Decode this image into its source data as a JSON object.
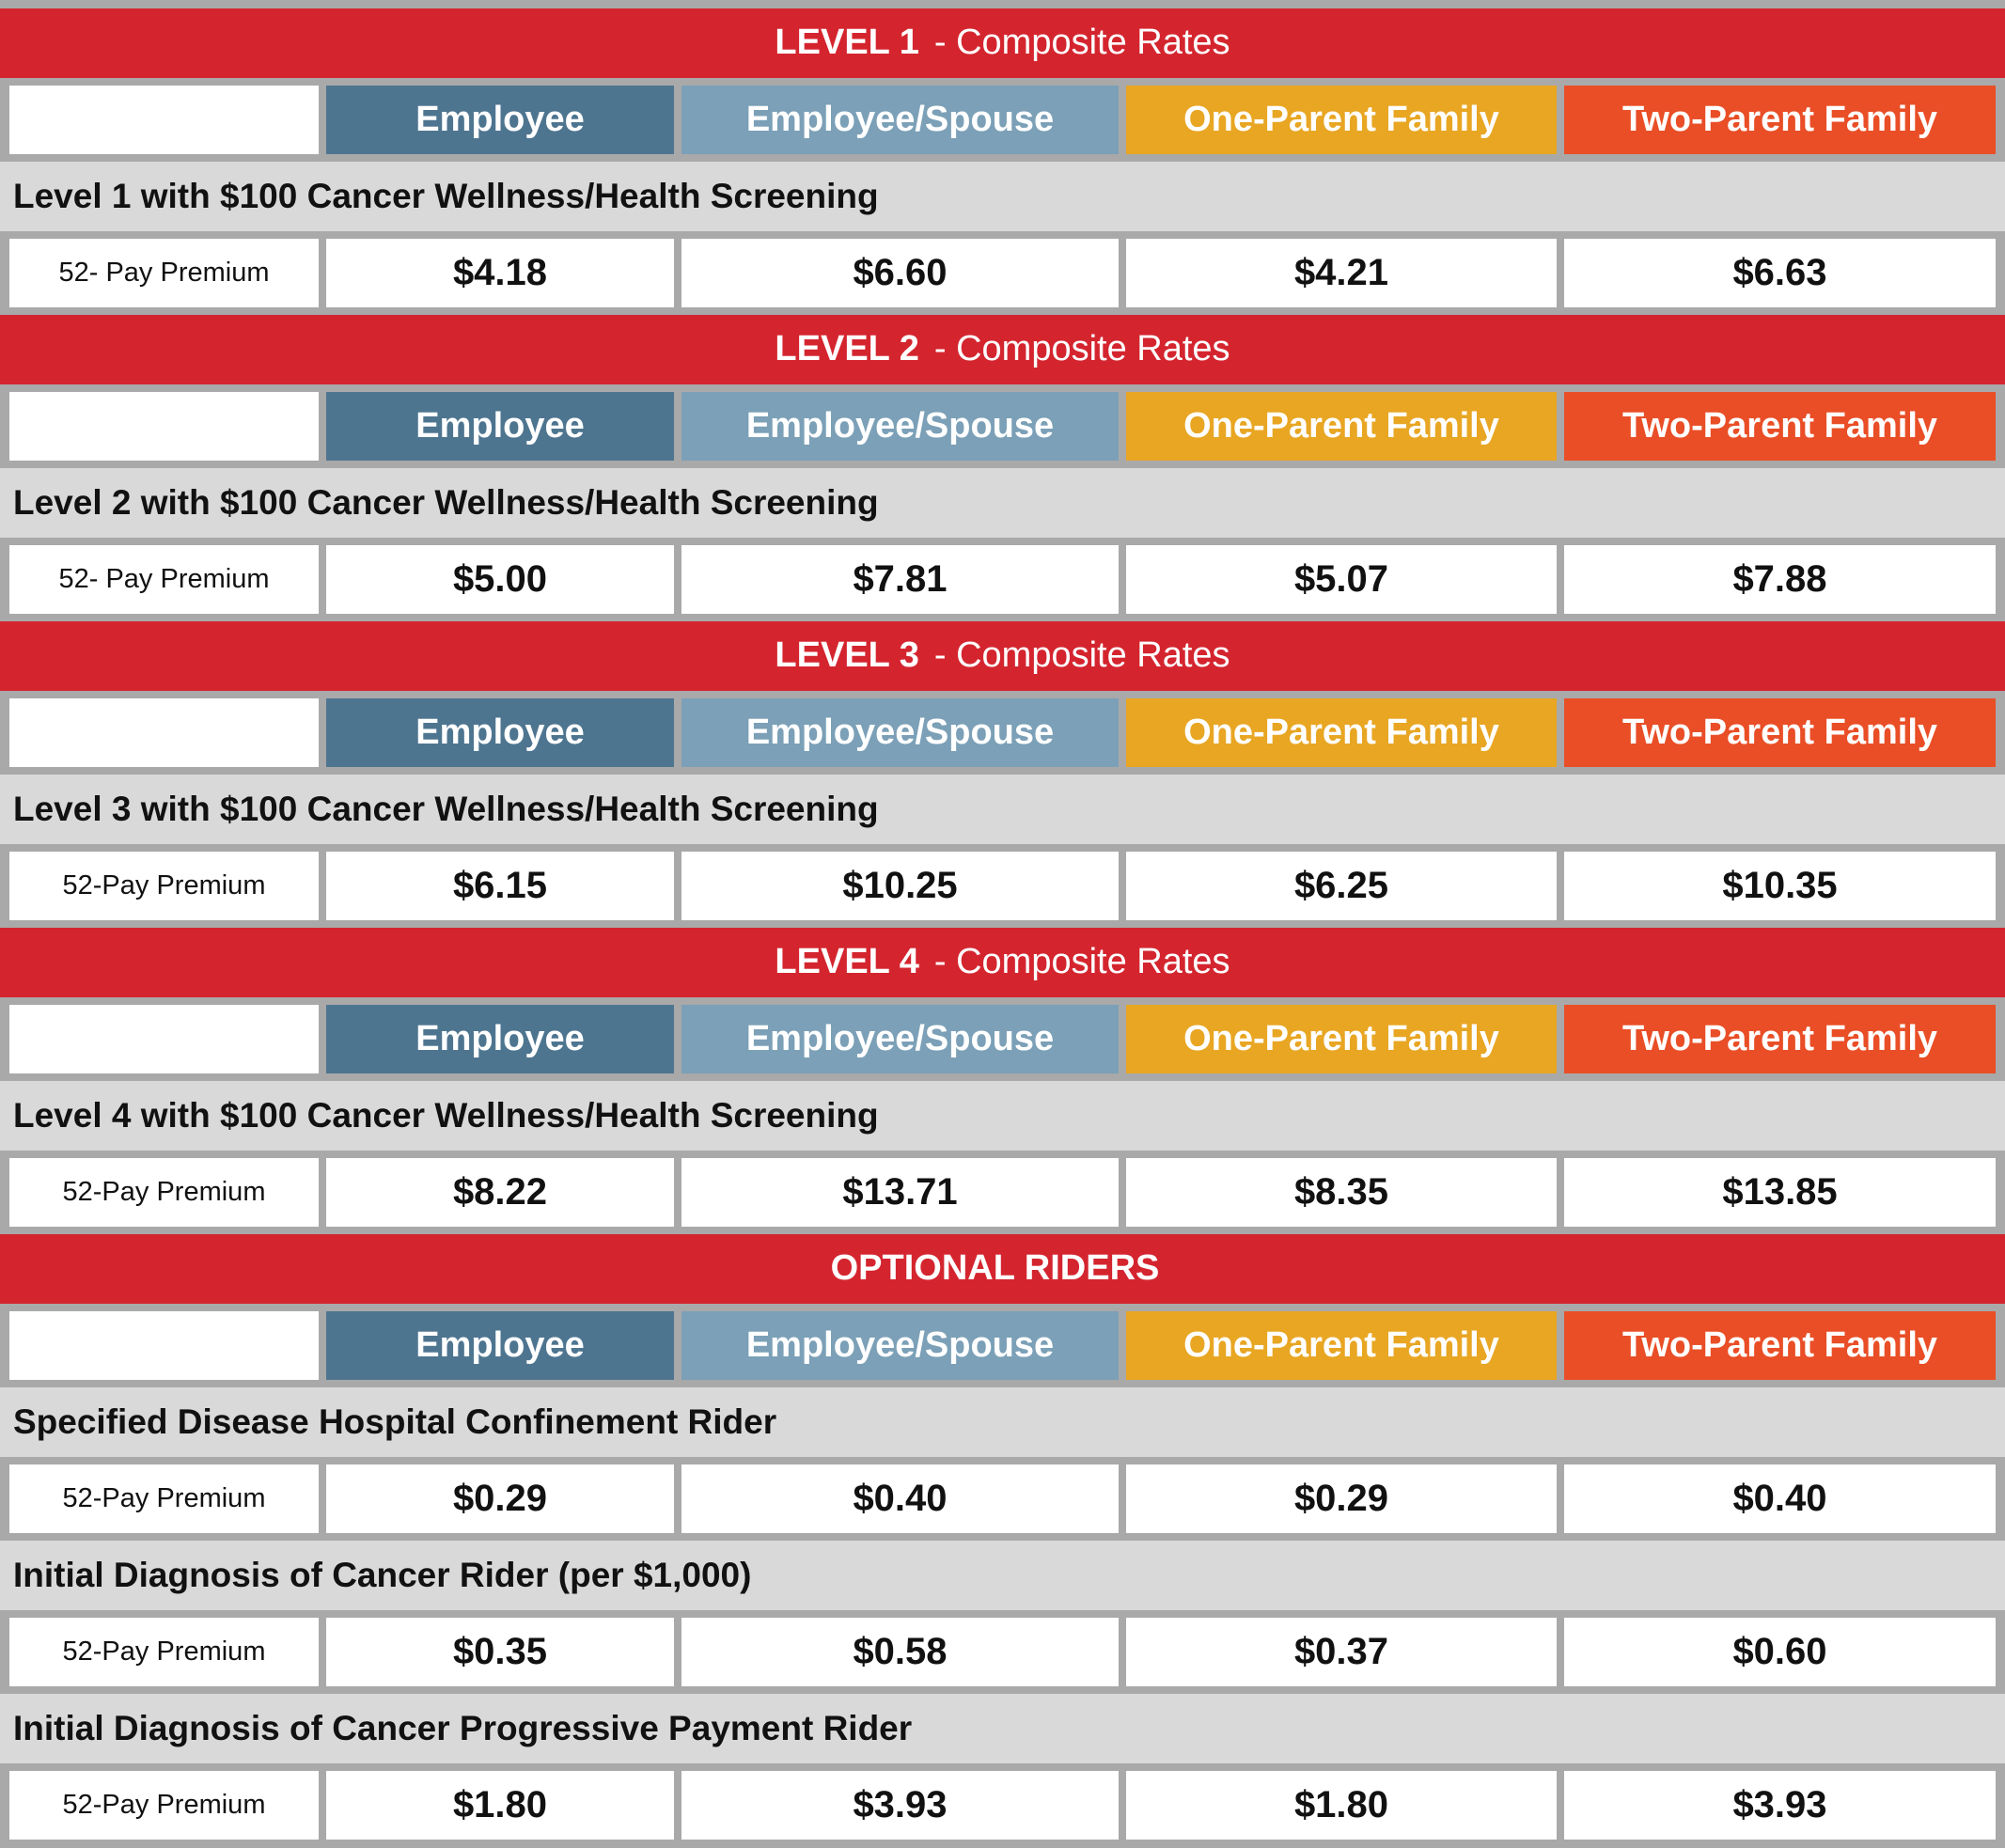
{
  "sections": [
    {
      "title": {
        "bold": "LEVEL 1",
        "rest": "- Composite Rates"
      },
      "columns": [
        "Employee",
        "Employee/Spouse",
        "One-Parent Family",
        "Two-Parent Family"
      ],
      "plans": [
        {
          "name": "Level 1 with $100 Cancer Wellness/Health Screening",
          "row_label": "52- Pay Premium",
          "values": [
            "$4.18",
            "$6.60",
            "$4.21",
            "$6.63"
          ]
        }
      ]
    },
    {
      "title": {
        "bold": "LEVEL 2",
        "rest": "- Composite Rates"
      },
      "columns": [
        "Employee",
        "Employee/Spouse",
        "One-Parent Family",
        "Two-Parent Family"
      ],
      "plans": [
        {
          "name": "Level 2 with $100 Cancer Wellness/Health Screening",
          "row_label": "52- Pay Premium",
          "values": [
            "$5.00",
            "$7.81",
            "$5.07",
            "$7.88"
          ]
        }
      ]
    },
    {
      "title": {
        "bold": "LEVEL 3",
        "rest": "- Composite Rates"
      },
      "columns": [
        "Employee",
        "Employee/Spouse",
        "One-Parent Family",
        "Two-Parent Family"
      ],
      "plans": [
        {
          "name": "Level 3 with $100 Cancer Wellness/Health Screening",
          "row_label": "52-Pay Premium",
          "values": [
            "$6.15",
            "$10.25",
            "$6.25",
            "$10.35"
          ]
        }
      ]
    },
    {
      "title": {
        "bold": "LEVEL 4",
        "rest": "- Composite Rates"
      },
      "columns": [
        "Employee",
        "Employee/Spouse",
        "One-Parent Family",
        "Two-Parent Family"
      ],
      "plans": [
        {
          "name": "Level 4 with $100 Cancer Wellness/Health Screening",
          "row_label": "52-Pay Premium",
          "values": [
            "$8.22",
            "$13.71",
            "$8.35",
            "$13.85"
          ]
        }
      ]
    },
    {
      "title": {
        "bold": "OPTIONAL RIDERS"
      },
      "columns": [
        "Employee",
        "Employee/Spouse",
        "One-Parent Family",
        "Two-Parent Family"
      ],
      "plans": [
        {
          "name": "Specified Disease Hospital Confinement Rider",
          "row_label": "52-Pay Premium",
          "values": [
            "$0.29",
            "$0.40",
            "$0.29",
            "$0.40"
          ]
        },
        {
          "name": "Initial Diagnosis of Cancer Rider (per $1,000)",
          "row_label": "52-Pay Premium",
          "values": [
            "$0.35",
            "$0.58",
            "$0.37",
            "$0.60"
          ]
        },
        {
          "name": "Initial Diagnosis of Cancer Progressive Payment Rider",
          "row_label": "52-Pay Premium",
          "values": [
            "$1.80",
            "$3.93",
            "$1.80",
            "$3.93"
          ]
        }
      ]
    }
  ]
}
